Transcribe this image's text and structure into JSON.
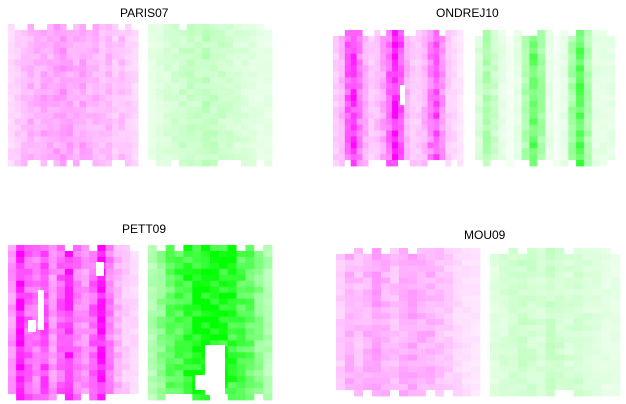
{
  "panel_titles": [
    "PARIS07",
    "ONDREJ10",
    "PETT09",
    "MOU09"
  ],
  "colors": {
    "magenta": "#ff00ff",
    "green": "#00ff00",
    "background": "#ffffff"
  },
  "chart_data": [
    {
      "type": "heatmap",
      "title": "PARIS07",
      "maps": [
        {
          "color": "magenta",
          "intensity_by_column": [
            0.15,
            0.2,
            0.25,
            0.3,
            0.3,
            0.35,
            0.3,
            0.35,
            0.4,
            0.35,
            0.3,
            0.35,
            0.3,
            0.3,
            0.25,
            0.3,
            0.2,
            0.25,
            0.2,
            0.15
          ]
        },
        {
          "color": "green",
          "intensity_by_column": [
            0.1,
            0.12,
            0.15,
            0.18,
            0.2,
            0.22,
            0.2,
            0.25,
            0.22,
            0.2,
            0.18,
            0.15,
            0.14,
            0.12,
            0.1,
            0.1
          ]
        }
      ]
    },
    {
      "type": "heatmap",
      "title": "ONDREJ10",
      "maps": [
        {
          "color": "magenta",
          "intensity_by_column": [
            0.2,
            0.3,
            0.6,
            0.8,
            0.5,
            0.3,
            0.2,
            0.25,
            0.35,
            0.6,
            0.9,
            0.7,
            0.3,
            0.2,
            0.2,
            0.3,
            0.5,
            0.7,
            0.4,
            0.2,
            0.15,
            0.1
          ]
        },
        {
          "color": "green",
          "intensity_by_column": [
            0.15,
            0.3,
            0.2,
            0.1,
            0.05,
            0.1,
            0.3,
            0.6,
            0.35,
            0.1,
            0.05,
            0.1,
            0.35,
            0.65,
            0.3,
            0.1,
            0.1,
            0.1
          ]
        }
      ]
    },
    {
      "type": "heatmap",
      "title": "PETT09",
      "maps": [
        {
          "color": "magenta",
          "intensity_by_column": [
            0.4,
            0.9,
            0.6,
            0.5,
            0.7,
            0.4,
            0.6,
            0.8,
            0.5,
            0.4,
            0.6,
            0.9,
            0.5,
            0.3,
            0.2,
            0.15
          ]
        },
        {
          "color": "green",
          "intensity_by_column": [
            0.3,
            0.45,
            0.6,
            0.7,
            0.8,
            0.9,
            0.95,
            0.9,
            0.85,
            0.8,
            0.7,
            0.6,
            0.45,
            0.3
          ]
        }
      ]
    },
    {
      "type": "heatmap",
      "title": "MOU09",
      "maps": [
        {
          "color": "magenta",
          "intensity_by_column": [
            0.2,
            0.3,
            0.25,
            0.3,
            0.35,
            0.3,
            0.25,
            0.3,
            0.35,
            0.3,
            0.3,
            0.25,
            0.2,
            0.15,
            0.12,
            0.1
          ]
        },
        {
          "color": "green",
          "intensity_by_column": [
            0.12,
            0.15,
            0.18,
            0.2,
            0.18,
            0.15,
            0.2,
            0.18,
            0.15,
            0.17,
            0.14,
            0.12,
            0.1,
            0.1
          ]
        }
      ]
    }
  ]
}
